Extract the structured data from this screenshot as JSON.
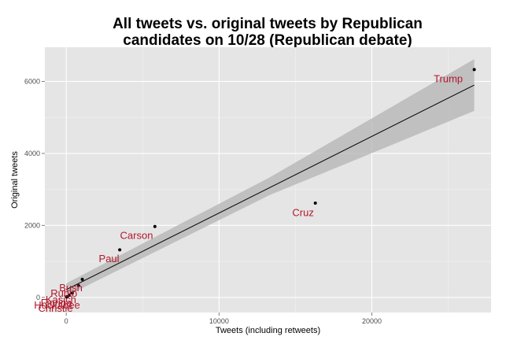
{
  "chart_data": {
    "type": "scatter",
    "title_lines": [
      "All tweets vs. original tweets by Republican",
      "candidates on 10/28 (Republican debate)"
    ],
    "xlabel": "Tweets (including retweets)",
    "ylabel": "Original tweets",
    "xlim": [
      -1400,
      27800
    ],
    "ylim": [
      -420,
      6950
    ],
    "x_ticks": [
      0,
      10000,
      20000
    ],
    "x_tick_labels": [
      "0",
      "10000",
      "20000"
    ],
    "y_ticks": [
      0,
      2000,
      4000,
      6000
    ],
    "y_tick_labels": [
      "0",
      "2000",
      "4000",
      "6000"
    ],
    "grid": true,
    "points": [
      {
        "x": 26700,
        "y": 6330
      },
      {
        "x": 16300,
        "y": 2620
      },
      {
        "x": 5800,
        "y": 1970
      },
      {
        "x": 3500,
        "y": 1320
      },
      {
        "x": 1050,
        "y": 500
      },
      {
        "x": 800,
        "y": 330
      },
      {
        "x": 400,
        "y": 120
      },
      {
        "x": 200,
        "y": 60
      },
      {
        "x": 60,
        "y": 20
      },
      {
        "x": 30,
        "y": 10
      }
    ],
    "labels": [
      {
        "text": "Trump",
        "x": 25000,
        "y": 6050
      },
      {
        "text": "Cruz",
        "x": 15500,
        "y": 2330
      },
      {
        "text": "Carson",
        "x": 4600,
        "y": 1700
      },
      {
        "text": "Paul",
        "x": 2800,
        "y": 1060
      },
      {
        "text": "Bush",
        "x": 300,
        "y": 250
      },
      {
        "text": "Rubio",
        "x": -150,
        "y": 90
      },
      {
        "text": "Kasich",
        "x": -350,
        "y": -80
      },
      {
        "text": "Fiorina",
        "x": -650,
        "y": -170
      },
      {
        "text": "Huckabee",
        "x": -600,
        "y": -240
      },
      {
        "text": "Christie",
        "x": -700,
        "y": -320
      }
    ],
    "fit_line": {
      "x": [
        0,
        26700
      ],
      "y": [
        215,
        5900
      ]
    },
    "confidence_band": {
      "x": [
        0,
        13300,
        26700
      ],
      "upper": [
        390,
        3330,
        6620
      ],
      "lower": [
        40,
        2840,
        5180
      ]
    },
    "colors": {
      "panel": "#e5e5e5",
      "grid_major": "#ffffff",
      "grid_minor": "#f2f2f2",
      "band": "#b3b3b3",
      "fit": "#000000",
      "point": "#000000",
      "label": "#b2182b"
    }
  }
}
